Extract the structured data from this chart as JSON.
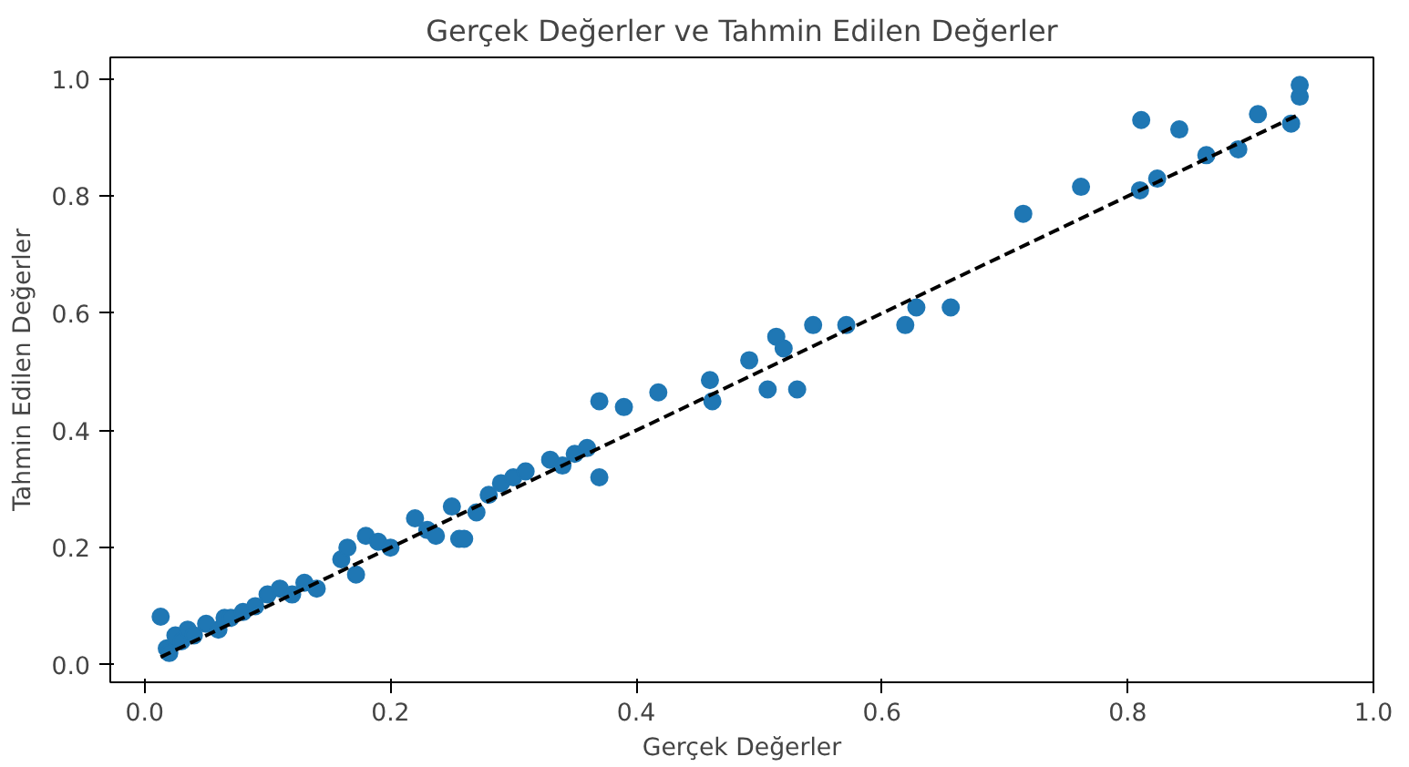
{
  "chart_data": {
    "type": "scatter",
    "title": "Gerçek Değerler ve Tahmin Edilen Değerler",
    "xlabel": "Gerçek Değerler",
    "ylabel": "Tahmin Edilen Değerler",
    "xlim": [
      -0.028,
      1.0
    ],
    "ylim": [
      -0.03,
      1.037
    ],
    "xticks": [
      {
        "value": 0,
        "label": "0.0"
      },
      0.2,
      0.4,
      0.6,
      0.8,
      {
        "value": 1,
        "label": "1.0"
      }
    ],
    "yticks": [
      {
        "value": 0,
        "label": "0.0"
      },
      0.2,
      0.4,
      0.6,
      0.8,
      {
        "value": 1,
        "label": "1.0"
      }
    ],
    "grid": false,
    "marker": "circle",
    "series": [
      {
        "color": "#1f77b4",
        "x": [
          0.013,
          0.018,
          0.02,
          0.025,
          0.03,
          0.035,
          0.04,
          0.05,
          0.06,
          0.065,
          0.07,
          0.08,
          0.09,
          0.1,
          0.11,
          0.12,
          0.13,
          0.14,
          0.16,
          0.165,
          0.172,
          0.18,
          0.19,
          0.2,
          0.22,
          0.23,
          0.237,
          0.25,
          0.256,
          0.26,
          0.27,
          0.28,
          0.29,
          0.3,
          0.31,
          0.33,
          0.34,
          0.35,
          0.36,
          0.37,
          0.37,
          0.39,
          0.418,
          0.46,
          0.462,
          0.492,
          0.507,
          0.514,
          0.52,
          0.531,
          0.544,
          0.571,
          0.619,
          0.628,
          0.656,
          0.715,
          0.762,
          0.81,
          0.811,
          0.824,
          0.842,
          0.864,
          0.89,
          0.906,
          0.933,
          0.94,
          0.94
        ],
        "values": [
          0.082,
          0.028,
          0.02,
          0.05,
          0.04,
          0.06,
          0.05,
          0.07,
          0.06,
          0.08,
          0.08,
          0.09,
          0.1,
          0.12,
          0.13,
          0.12,
          0.14,
          0.13,
          0.18,
          0.2,
          0.154,
          0.22,
          0.21,
          0.2,
          0.25,
          0.23,
          0.22,
          0.27,
          0.215,
          0.215,
          0.26,
          0.29,
          0.31,
          0.32,
          0.33,
          0.35,
          0.34,
          0.36,
          0.37,
          0.45,
          0.32,
          0.44,
          0.465,
          0.486,
          0.45,
          0.52,
          0.47,
          0.56,
          0.54,
          0.47,
          0.58,
          0.58,
          0.58,
          0.61,
          0.61,
          0.77,
          0.816,
          0.81,
          0.93,
          0.83,
          0.914,
          0.87,
          0.88,
          0.94,
          0.924,
          0.97,
          0.99
        ]
      },
      {
        "type": "line",
        "color": "#000000",
        "line_style": "dashed",
        "marker": "none",
        "x": [
          0.013,
          0.94
        ],
        "values": [
          0.013,
          0.94
        ]
      }
    ]
  }
}
